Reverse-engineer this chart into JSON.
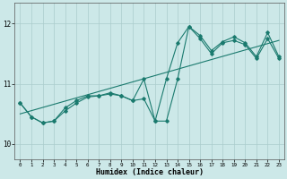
{
  "xlabel": "Humidex (Indice chaleur)",
  "xlim": [
    -0.5,
    23.5
  ],
  "ylim": [
    9.75,
    12.35
  ],
  "yticks": [
    10,
    11,
    12
  ],
  "xticks": [
    0,
    1,
    2,
    3,
    4,
    5,
    6,
    7,
    8,
    9,
    10,
    11,
    12,
    13,
    14,
    15,
    16,
    17,
    18,
    19,
    20,
    21,
    22,
    23
  ],
  "background_color": "#cce8e8",
  "line_color": "#1a7a6e",
  "grid_color": "#aacccc",
  "line1_y": [
    10.68,
    10.45,
    10.35,
    10.38,
    10.6,
    10.72,
    10.8,
    10.8,
    10.83,
    10.8,
    10.72,
    11.08,
    10.38,
    10.38,
    11.08,
    11.95,
    11.8,
    11.55,
    11.7,
    11.78,
    11.68,
    11.45,
    11.85,
    11.45
  ],
  "line2_y": [
    10.68,
    10.45,
    10.35,
    10.38,
    10.55,
    10.68,
    10.78,
    10.8,
    10.85,
    10.8,
    10.72,
    10.75,
    10.38,
    11.08,
    11.68,
    11.95,
    11.75,
    11.5,
    11.68,
    11.72,
    11.65,
    11.42,
    11.75,
    11.42
  ],
  "trend_x": [
    0,
    23
  ],
  "trend_y": [
    10.5,
    11.72
  ],
  "figsize": [
    3.2,
    2.0
  ],
  "dpi": 100
}
